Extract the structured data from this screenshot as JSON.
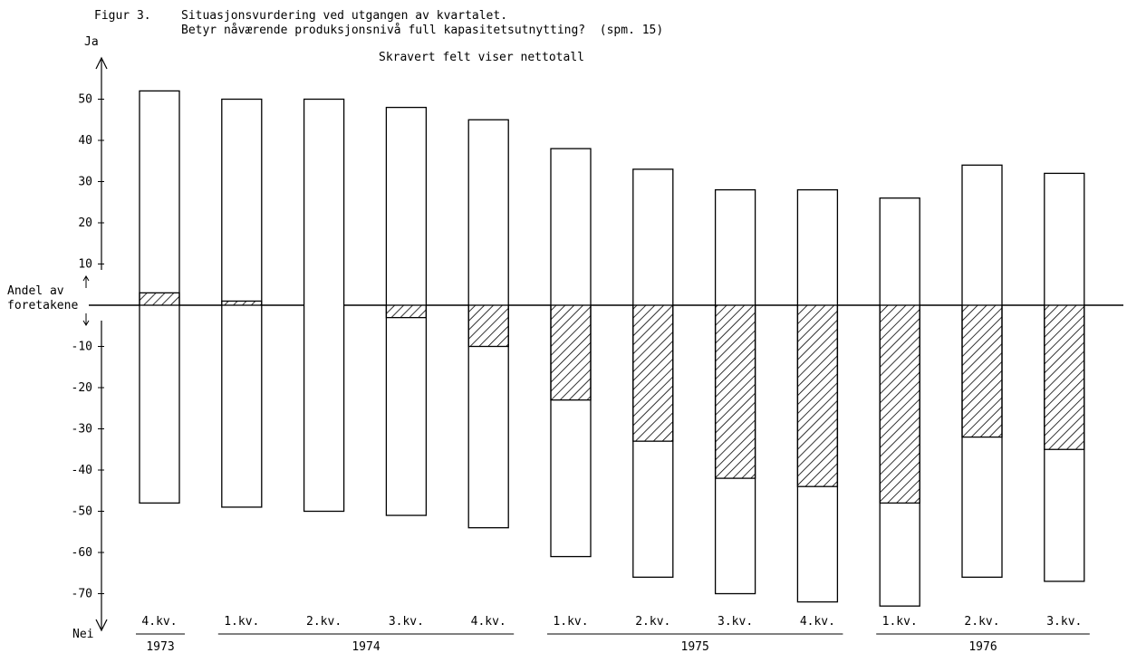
{
  "header": {
    "figure_label": "Figur 3.",
    "title": "Situasjonsvurdering ved utgangen av kvartalet.",
    "subtitle": "Betyr nåværende produksjonsnivå full kapasitetsutnytting?  (spm. 15)",
    "note": "Skravert felt viser nettotall"
  },
  "axis": {
    "top_label": "Ja",
    "bottom_label": "Nei",
    "ylabel_line1": "Andel av",
    "ylabel_line2": "foretakene"
  },
  "chart_data": {
    "type": "bar",
    "title": "Situasjonsvurdering ved utgangen av kvartalet.",
    "subtitle": "Betyr nåværende produksjonsnivå full kapasitetsutnytting?  (spm. 15)",
    "annotation": "Skravert felt viser nettotall",
    "xlabel": "",
    "ylabel": "Andel av foretakene",
    "ylim": [
      -78,
      62
    ],
    "yticks": [
      50,
      40,
      30,
      20,
      10,
      -10,
      -20,
      -30,
      -40,
      -50,
      -60,
      -70
    ],
    "categories": [
      "4.kv.",
      "1.kv.",
      "2.kv.",
      "3.kv.",
      "4.kv.",
      "1.kv.",
      "2.kv.",
      "3.kv.",
      "4.kv.",
      "1.kv.",
      "2.kv.",
      "3.kv."
    ],
    "years": [
      {
        "label": "1973",
        "from": 0,
        "to": 0
      },
      {
        "label": "1974",
        "from": 1,
        "to": 4
      },
      {
        "label": "1975",
        "from": 5,
        "to": 8
      },
      {
        "label": "1976",
        "from": 9,
        "to": 11
      }
    ],
    "series": [
      {
        "name": "Ja",
        "values": [
          52,
          50,
          50,
          48,
          45,
          38,
          33,
          28,
          28,
          26,
          34,
          32
        ]
      },
      {
        "name": "Nei",
        "values": [
          -48,
          -49,
          -50,
          -51,
          -54,
          -61,
          -66,
          -70,
          -72,
          -73,
          -66,
          -67
        ]
      },
      {
        "name": "nettotall",
        "values": [
          3,
          1,
          0,
          -3,
          -10,
          -23,
          -33,
          -42,
          -44,
          -48,
          -32,
          -35
        ]
      }
    ],
    "grid": false,
    "legend": "none"
  }
}
